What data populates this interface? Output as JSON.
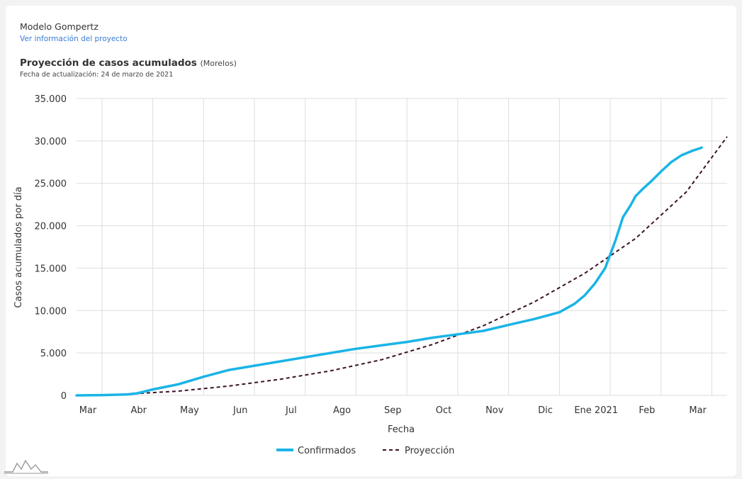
{
  "header": {
    "model_title": "Modelo Gompertz",
    "project_link": "Ver información del proyecto",
    "chart_title": "Proyección de casos acumulados",
    "region": "(Morelos)",
    "updated": "Fecha de actualización: 24 de marzo de 2021"
  },
  "colors": {
    "confirmed": "#1ab4e6",
    "projection": "#3a1228",
    "grid": "#dddddd"
  },
  "chart_data": {
    "type": "line",
    "title": "Proyección de casos acumulados (Morelos)",
    "xlabel": "Fecha",
    "ylabel": "Casos acumulados por día",
    "ylim": [
      0,
      35000
    ],
    "y_ticks": [
      0,
      5000,
      10000,
      15000,
      20000,
      25000,
      30000,
      35000
    ],
    "y_tick_labels": [
      "0",
      "5.000",
      "10.000",
      "15.000",
      "20.000",
      "25.000",
      "30.000",
      "35.000"
    ],
    "x_unit": "months since 2020-03-01",
    "xlim": [
      0,
      12.8
    ],
    "x_ticks": [
      0,
      1,
      2,
      3,
      4,
      5,
      6,
      7,
      8,
      9,
      10,
      11,
      12
    ],
    "x_tick_labels": [
      "Mar",
      "Abr",
      "May",
      "Jun",
      "Jul",
      "Ago",
      "Sep",
      "Oct",
      "Nov",
      "Dic",
      "Ene 2021",
      "Feb",
      "Mar"
    ],
    "legend_position": "bottom-center",
    "series": [
      {
        "name": "Confirmados",
        "style": "solid",
        "x": [
          0,
          0.5,
          1.0,
          1.2,
          1.5,
          2.0,
          2.5,
          3.0,
          3.5,
          4.0,
          4.5,
          5.0,
          5.5,
          6.0,
          6.5,
          7.0,
          7.5,
          8.0,
          8.5,
          9.0,
          9.5,
          9.8,
          10.0,
          10.2,
          10.4,
          10.6,
          10.75,
          10.9,
          11.0,
          11.15,
          11.3,
          11.5,
          11.7,
          11.9,
          12.1,
          12.3
        ],
        "values": [
          0,
          30,
          120,
          250,
          700,
          1300,
          2200,
          3000,
          3500,
          4000,
          4500,
          5000,
          5500,
          5900,
          6300,
          6800,
          7200,
          7600,
          8300,
          9000,
          9800,
          10800,
          11800,
          13200,
          15000,
          18200,
          21000,
          22400,
          23500,
          24400,
          25200,
          26400,
          27500,
          28300,
          28800,
          29200
        ]
      },
      {
        "name": "Proyección",
        "style": "dashed",
        "x": [
          0,
          1,
          2,
          3,
          4,
          5,
          6,
          7,
          8,
          9,
          10,
          11,
          12,
          12.8
        ],
        "values": [
          0,
          150,
          500,
          1100,
          1900,
          2900,
          4200,
          6000,
          8200,
          11000,
          14400,
          18500,
          24000,
          30500
        ]
      }
    ]
  }
}
